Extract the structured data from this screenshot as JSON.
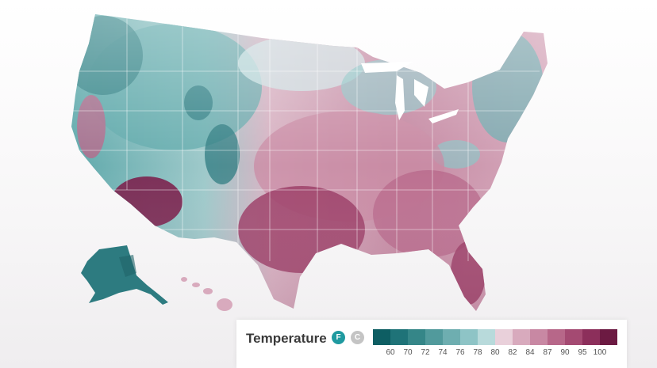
{
  "legend": {
    "title": "Temperature",
    "unit_f": "F",
    "unit_c": "C",
    "unit_f_color": "#1f9aa0",
    "unit_c_color": "#c4c4c4",
    "swatch_colors": [
      "#0e5e63",
      "#1f7378",
      "#358688",
      "#519a9c",
      "#6eaeb0",
      "#8ec4c6",
      "#b8dadb",
      "#e9d0da",
      "#d8aabd",
      "#c888a3",
      "#b76789",
      "#a44a72",
      "#8c2f5b",
      "#6c1a42"
    ],
    "ticks": [
      "60",
      "70",
      "72",
      "74",
      "76",
      "78",
      "80",
      "82",
      "84",
      "87",
      "90",
      "95",
      "100"
    ]
  },
  "map": {
    "region": "United States",
    "cool_color": "#5fa9ab",
    "cool_dark_color": "#2d7b80",
    "light_color": "#cfe4e6",
    "warm_color": "#c98ba4",
    "hot_color": "#9b3d66",
    "hottest_color": "#7a1f4b"
  }
}
